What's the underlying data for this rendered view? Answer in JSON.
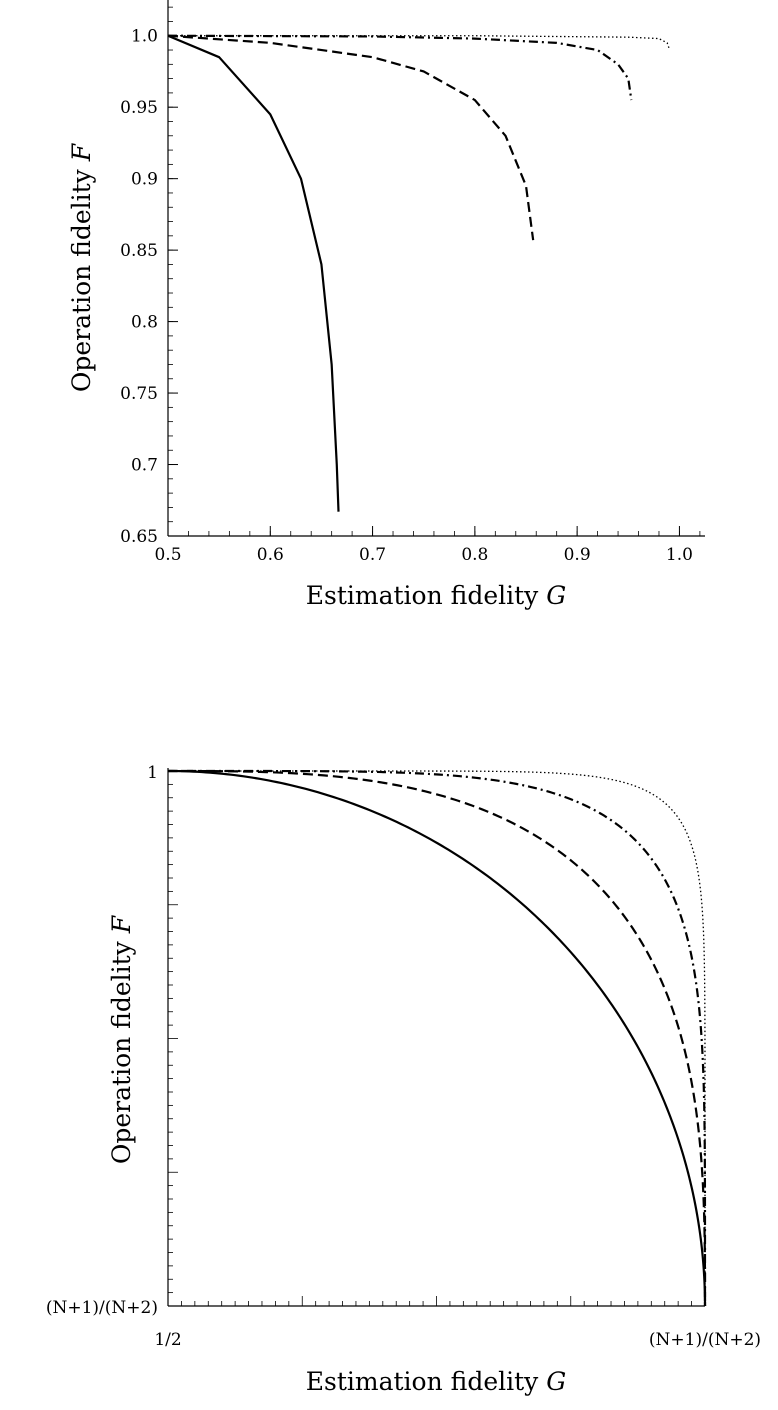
{
  "chart_data": [
    {
      "type": "line",
      "xlabel": "Estimation fidelity",
      "xlabel_var": "G",
      "ylabel": "Operation fidelity",
      "ylabel_var": "F",
      "xlim": [
        0.5,
        1.025
      ],
      "ylim": [
        0.65,
        1.025
      ],
      "xticks": [
        0.5,
        0.6,
        0.7,
        0.8,
        0.9,
        1.0
      ],
      "xtick_labels": [
        "0.5",
        "0.6",
        "0.7",
        "0.8",
        "0.9",
        "1.0"
      ],
      "yticks": [
        0.65,
        0.7,
        0.75,
        0.8,
        0.85,
        0.9,
        0.95,
        1.0
      ],
      "ytick_labels": [
        "0.65",
        "0.7",
        "0.75",
        "0.8",
        "0.85",
        "0.9",
        "0.95",
        "1.0"
      ],
      "grid": false,
      "series": [
        {
          "style": "solid",
          "points": [
            [
              0.5,
              1.0
            ],
            [
              0.55,
              0.985
            ],
            [
              0.6,
              0.945
            ],
            [
              0.63,
              0.9
            ],
            [
              0.65,
              0.84
            ],
            [
              0.66,
              0.77
            ],
            [
              0.665,
              0.7
            ],
            [
              0.6667,
              0.667
            ]
          ]
        },
        {
          "style": "dashed",
          "points": [
            [
              0.5,
              1.0
            ],
            [
              0.6,
              0.995
            ],
            [
              0.7,
              0.985
            ],
            [
              0.75,
              0.975
            ],
            [
              0.8,
              0.955
            ],
            [
              0.83,
              0.93
            ],
            [
              0.85,
              0.895
            ],
            [
              0.857,
              0.857
            ]
          ]
        },
        {
          "style": "dashdot",
          "points": [
            [
              0.5,
              1.0
            ],
            [
              0.7,
              0.9995
            ],
            [
              0.8,
              0.998
            ],
            [
              0.88,
              0.995
            ],
            [
              0.92,
              0.99
            ],
            [
              0.94,
              0.98
            ],
            [
              0.95,
              0.97
            ],
            [
              0.953,
              0.955
            ]
          ]
        },
        {
          "style": "dotted",
          "points": [
            [
              0.5,
              1.0
            ],
            [
              0.8,
              1.0
            ],
            [
              0.95,
              0.999
            ],
            [
              0.98,
              0.998
            ],
            [
              0.988,
              0.995
            ],
            [
              0.99,
              0.991
            ]
          ]
        }
      ]
    },
    {
      "type": "line",
      "xlabel": "Estimation fidelity",
      "xlabel_var": "G",
      "ylabel": "Operation fidelity",
      "ylabel_var": "F",
      "xtick_labels": [
        "1/2",
        "(N+1)/(N+2)"
      ],
      "ytick_labels": [
        "(N+1)/(N+2)",
        "1"
      ],
      "grid": false,
      "series": [
        {
          "style": "solid",
          "exponent": 2
        },
        {
          "style": "dashed",
          "exponent": 3
        },
        {
          "style": "dashdot",
          "exponent": 5
        },
        {
          "style": "dotted",
          "exponent": 10
        }
      ]
    }
  ]
}
